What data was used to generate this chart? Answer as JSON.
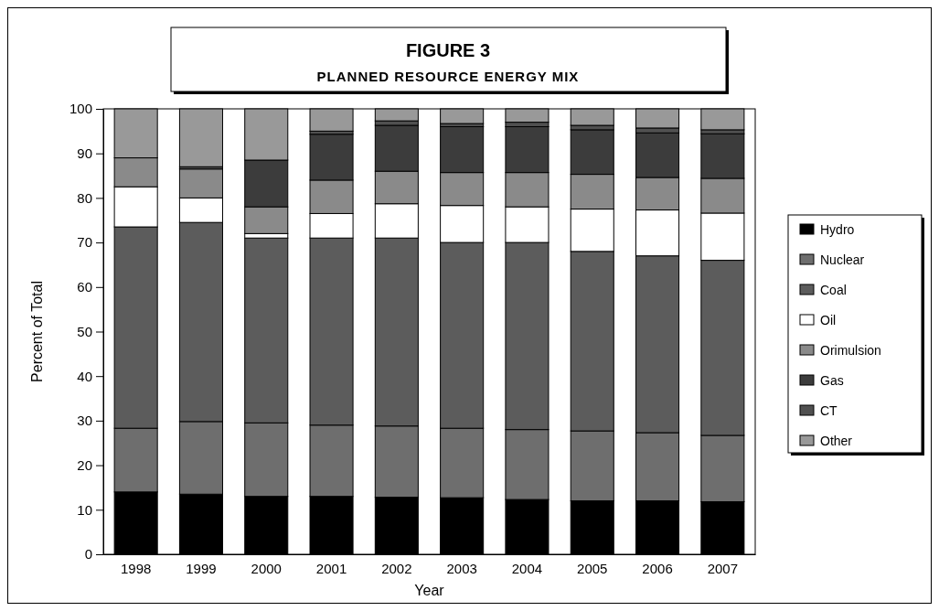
{
  "chart_data": {
    "type": "bar",
    "stacked": true,
    "title": "FIGURE 3",
    "subtitle": "PLANNED RESOURCE ENERGY MIX",
    "xlabel": "Year",
    "ylabel": "Percent of Total",
    "categories": [
      "1998",
      "1999",
      "2000",
      "2001",
      "2002",
      "2003",
      "2004",
      "2005",
      "2006",
      "2007"
    ],
    "ylim": [
      0,
      100
    ],
    "yticks": [
      0,
      10,
      20,
      30,
      40,
      50,
      60,
      70,
      80,
      90,
      100
    ],
    "grid": false,
    "legend": "right",
    "series": [
      {
        "name": "Hydro",
        "color": "#000000",
        "values": [
          14,
          13.5,
          13,
          13,
          12.8,
          12.7,
          12.3,
          12,
          12,
          11.8
        ]
      },
      {
        "name": "Nuclear",
        "color": "#6e6e6e",
        "values": [
          14.3,
          16.3,
          16.5,
          16,
          16,
          15.6,
          15.7,
          15.7,
          15.3,
          14.9
        ]
      },
      {
        "name": "Coal",
        "color": "#5c5c5c",
        "values": [
          45.2,
          44.7,
          41.5,
          42,
          42.2,
          41.7,
          42,
          40.3,
          39.7,
          39.3
        ]
      },
      {
        "name": "Oil",
        "color": "#ffffff",
        "values": [
          9,
          5.5,
          1,
          5.5,
          7.7,
          8.3,
          8,
          9.5,
          10.3,
          10.6
        ]
      },
      {
        "name": "Orimulsion",
        "color": "#8a8a8a",
        "values": [
          6.5,
          6.5,
          6,
          7.5,
          7.3,
          7.4,
          7.7,
          7.8,
          7.3,
          7.8
        ]
      },
      {
        "name": "Gas",
        "color": "#3c3c3c",
        "values": [
          0,
          0,
          10.5,
          10.3,
          10.3,
          10.3,
          10.3,
          10,
          10,
          10
        ]
      },
      {
        "name": "CT",
        "color": "#505050",
        "values": [
          0,
          0.5,
          0,
          0.7,
          1,
          0.7,
          1,
          1,
          1.1,
          0.9
        ]
      },
      {
        "name": "Other",
        "color": "#999999",
        "values": [
          11,
          13,
          11.5,
          5,
          2.7,
          3.3,
          3,
          3.7,
          4.3,
          4.7
        ]
      }
    ]
  }
}
